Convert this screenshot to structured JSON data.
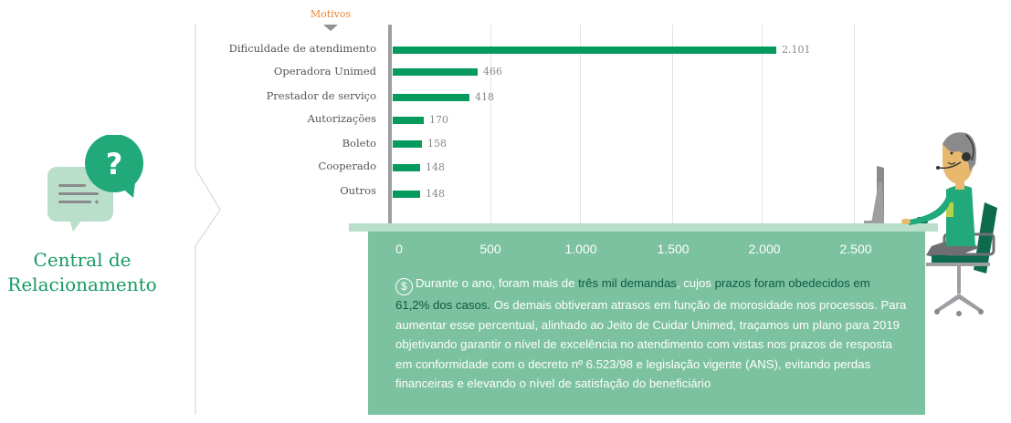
{
  "sidebar": {
    "icon": "question-chat-bubbles-icon",
    "title_line1": "Central de",
    "title_line2": "Relacionamento"
  },
  "colors": {
    "bar": "#069a5c",
    "accent_orange": "#e8862f",
    "panel": "#7cc1a0",
    "panel_strip": "#b9dfca",
    "title_green": "#169a64",
    "highlight_text": "#0f5a45"
  },
  "chart_data": {
    "type": "bar",
    "orientation": "horizontal",
    "title": "Motivos",
    "categories": [
      "Dificuldade de atendimento",
      "Operadora Unimed",
      "Prestador de serviço",
      "Autorizações",
      "Boleto",
      "Cooperado",
      "Outros"
    ],
    "values": [
      2101,
      466,
      418,
      170,
      158,
      148,
      148
    ],
    "value_labels": [
      "2.101",
      "466",
      "418",
      "170",
      "158",
      "148",
      "148"
    ],
    "xlabel": "",
    "ylabel": "",
    "xlim": [
      0,
      2500
    ],
    "xticks": [
      "0",
      "500",
      "1.000",
      "1.500",
      "2.000",
      "2.500"
    ],
    "grid": true
  },
  "panel": {
    "icon": "dollar-circle-icon",
    "text": {
      "p1": "Durante o ano, foram mais de ",
      "h1": "três mil demandas",
      "p2": ", cujos ",
      "h2": "prazos foram obedecidos em 61,2% dos casos.",
      "p3": " Os demais obtiveram atrasos em função de morosidade nos processos. Para aumentar esse percentual, alinhado ao Jeito de Cuidar Unimed, traçamos um plano para 2019 objetivando garantir o nível de excelência no atendimento com vistas nos prazos de resposta em conformidade com o decreto nº 6.523/98 e legislação vigente (ANS), evitando perdas financeiras e elevando o nível de satisfação do beneficiário"
    }
  },
  "illustration": {
    "name": "call-center-agent-illustration"
  }
}
